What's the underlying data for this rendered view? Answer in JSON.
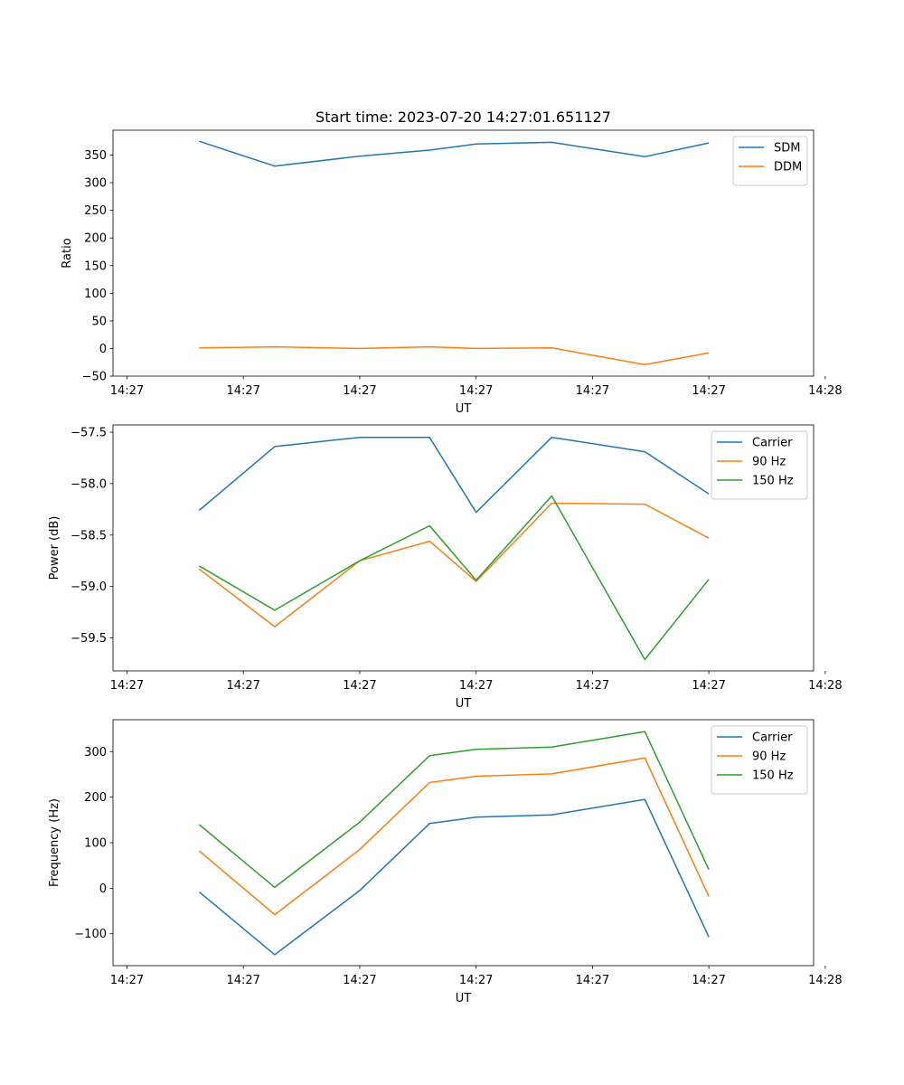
{
  "figure_title": "Start time: 2023-07-20 14:27:01.651127",
  "chart_data": [
    {
      "type": "line",
      "title": "Start time: 2023-07-20 14:27:01.651127",
      "xlabel": "UT",
      "ylabel": "Ratio",
      "x": [
        0.62,
        1.27,
        2.0,
        2.6,
        3.0,
        3.65,
        4.45,
        5.0
      ],
      "xlim": [
        -0.12,
        5.9
      ],
      "x_ticks": [
        0,
        1,
        2,
        3,
        4,
        5,
        6
      ],
      "x_tick_labels": [
        "14:27",
        "14:27",
        "14:27",
        "14:27",
        "14:27",
        "14:27",
        "14:28"
      ],
      "ylim": [
        -50,
        395
      ],
      "y_ticks": [
        -50,
        0,
        50,
        100,
        150,
        200,
        250,
        300,
        350
      ],
      "y_tick_labels": [
        "−50",
        "0",
        "50",
        "100",
        "150",
        "200",
        "250",
        "300",
        "350"
      ],
      "legend_position": "top-right",
      "series": [
        {
          "name": "SDM",
          "color": "#1f77b4",
          "values": [
            375,
            330,
            348,
            359,
            370,
            373,
            347,
            372
          ]
        },
        {
          "name": "DDM",
          "color": "#ff7f0e",
          "values": [
            1,
            3,
            0,
            3,
            0,
            1,
            -29,
            -8
          ]
        }
      ]
    },
    {
      "type": "line",
      "title": "",
      "xlabel": "UT",
      "ylabel": "Power (dB)",
      "x": [
        0.62,
        1.27,
        2.0,
        2.6,
        3.0,
        3.65,
        4.45,
        5.0
      ],
      "xlim": [
        -0.12,
        5.9
      ],
      "x_ticks": [
        0,
        1,
        2,
        3,
        4,
        5,
        6
      ],
      "x_tick_labels": [
        "14:27",
        "14:27",
        "14:27",
        "14:27",
        "14:27",
        "14:27",
        "14:28"
      ],
      "ylim": [
        -59.82,
        -57.43
      ],
      "y_ticks": [
        -59.5,
        -59.0,
        -58.5,
        -58.0,
        -57.5
      ],
      "y_tick_labels": [
        "−59.5",
        "−59.0",
        "−58.5",
        "−58.0",
        "−57.5"
      ],
      "legend_position": "top-right",
      "series": [
        {
          "name": "Carrier",
          "color": "#1f77b4",
          "values": [
            -58.26,
            -57.64,
            -57.55,
            -57.55,
            -58.28,
            -57.55,
            -57.69,
            -58.1
          ]
        },
        {
          "name": "90 Hz",
          "color": "#ff7f0e",
          "values": [
            -58.83,
            -59.39,
            -58.75,
            -58.56,
            -58.95,
            -58.19,
            -58.2,
            -58.53
          ]
        },
        {
          "name": "150 Hz",
          "color": "#2ca02c",
          "values": [
            -58.8,
            -59.23,
            -58.75,
            -58.41,
            -58.94,
            -58.12,
            -59.71,
            -58.93
          ]
        }
      ]
    },
    {
      "type": "line",
      "title": "",
      "xlabel": "UT",
      "ylabel": "Frequency (Hz)",
      "x": [
        0.62,
        1.27,
        2.0,
        2.6,
        3.0,
        3.65,
        4.45,
        5.0
      ],
      "xlim": [
        -0.12,
        5.9
      ],
      "x_ticks": [
        0,
        1,
        2,
        3,
        4,
        5,
        6
      ],
      "x_tick_labels": [
        "14:27",
        "14:27",
        "14:27",
        "14:27",
        "14:27",
        "14:27",
        "14:28"
      ],
      "ylim": [
        -170,
        370
      ],
      "y_ticks": [
        -100,
        0,
        100,
        200,
        300
      ],
      "y_tick_labels": [
        "−100",
        "0",
        "100",
        "200",
        "300"
      ],
      "legend_position": "top-right",
      "series": [
        {
          "name": "Carrier",
          "color": "#1f77b4",
          "values": [
            -8,
            -146,
            -5,
            142,
            156,
            161,
            195,
            -107
          ]
        },
        {
          "name": "90 Hz",
          "color": "#ff7f0e",
          "values": [
            82,
            -58,
            85,
            232,
            246,
            251,
            286,
            -18
          ]
        },
        {
          "name": "150 Hz",
          "color": "#2ca02c",
          "values": [
            140,
            2,
            145,
            291,
            305,
            310,
            344,
            41
          ]
        }
      ]
    }
  ]
}
